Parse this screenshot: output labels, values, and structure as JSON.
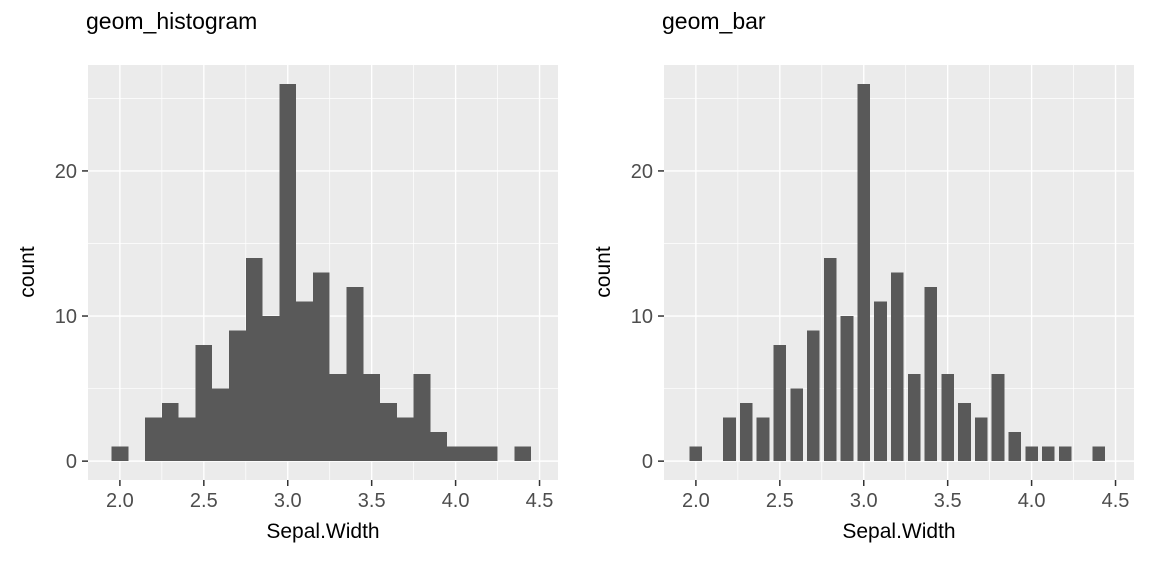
{
  "chart_data": [
    {
      "type": "bar",
      "title": "geom_histogram",
      "xlabel": "Sepal.Width",
      "ylabel": "count",
      "x": [
        2.0,
        2.2,
        2.3,
        2.4,
        2.5,
        2.6,
        2.7,
        2.8,
        2.9,
        3.0,
        3.1,
        3.2,
        3.3,
        3.4,
        3.5,
        3.6,
        3.7,
        3.8,
        3.9,
        4.0,
        4.1,
        4.2,
        4.4
      ],
      "values": [
        1,
        3,
        4,
        3,
        8,
        5,
        9,
        14,
        10,
        26,
        11,
        13,
        6,
        12,
        6,
        4,
        3,
        6,
        2,
        1,
        1,
        1,
        1
      ],
      "bar_width": 0.1,
      "xlim": [
        1.81,
        4.61
      ],
      "ylim": [
        -1.3,
        27.3
      ],
      "x_tick_values": [
        2.0,
        2.5,
        3.0,
        3.5,
        4.0,
        4.5
      ],
      "x_tick_labels": [
        "2.0",
        "2.5",
        "3.0",
        "3.5",
        "4.0",
        "4.5"
      ],
      "y_tick_values": [
        0,
        10,
        20
      ],
      "y_tick_labels": [
        "0",
        "10",
        "20"
      ],
      "x_minor": [
        2.25,
        2.75,
        3.25,
        3.75,
        4.25
      ],
      "y_minor": [
        5,
        15,
        25
      ],
      "grid": "on",
      "legend": "none"
    },
    {
      "type": "bar",
      "title": "geom_bar",
      "xlabel": "Sepal.Width",
      "ylabel": "count",
      "x": [
        2.0,
        2.2,
        2.3,
        2.4,
        2.5,
        2.6,
        2.7,
        2.8,
        2.9,
        3.0,
        3.1,
        3.2,
        3.3,
        3.4,
        3.5,
        3.6,
        3.7,
        3.8,
        3.9,
        4.0,
        4.1,
        4.2,
        4.4
      ],
      "values": [
        1,
        3,
        4,
        3,
        8,
        5,
        9,
        14,
        10,
        26,
        11,
        13,
        6,
        12,
        6,
        4,
        3,
        6,
        2,
        1,
        1,
        1,
        1
      ],
      "bar_width": 0.075,
      "xlim": [
        1.81,
        4.61
      ],
      "ylim": [
        -1.3,
        27.3
      ],
      "x_tick_values": [
        2.0,
        2.5,
        3.0,
        3.5,
        4.0,
        4.5
      ],
      "x_tick_labels": [
        "2.0",
        "2.5",
        "3.0",
        "3.5",
        "4.0",
        "4.5"
      ],
      "y_tick_values": [
        0,
        10,
        20
      ],
      "y_tick_labels": [
        "0",
        "10",
        "20"
      ],
      "x_minor": [
        2.25,
        2.75,
        3.25,
        3.75,
        4.25
      ],
      "y_minor": [
        5,
        15,
        25
      ],
      "grid": "on",
      "legend": "none"
    }
  ],
  "colors": {
    "panel_bg": "#EBEBEB",
    "bar": "#595959",
    "grid_major": "#FFFFFF",
    "grid_minor": "#FFFFFF",
    "tick": "#333333",
    "axis_text": "#4D4D4D",
    "title_text": "#000000"
  }
}
